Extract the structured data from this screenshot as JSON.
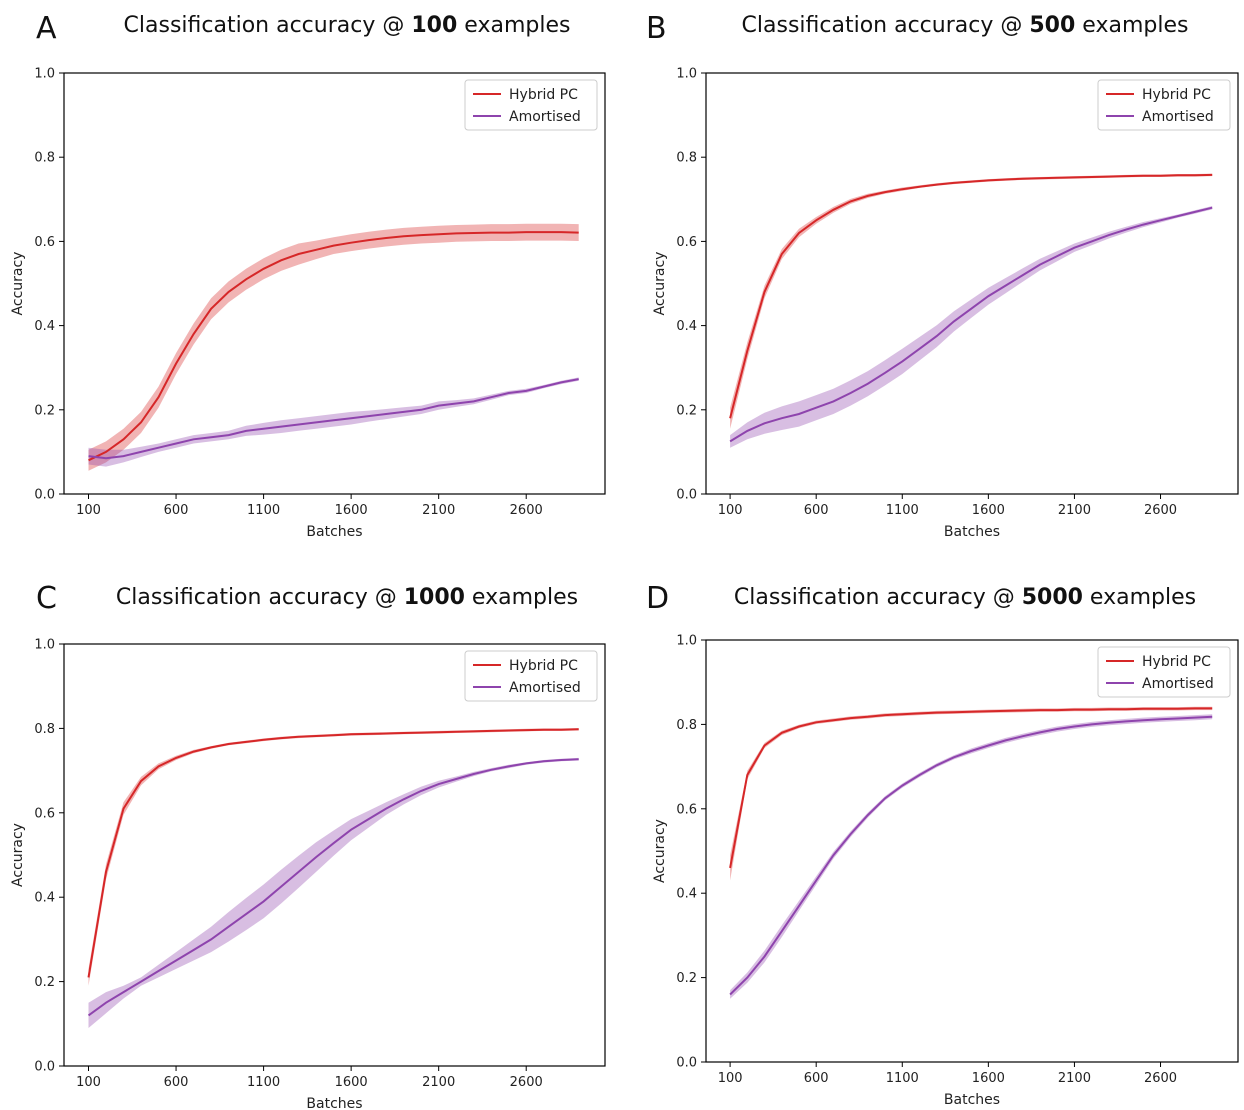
{
  "chart_data": [
    {
      "type": "line",
      "panel": "A",
      "title_prefix": "Classification accuracy @ ",
      "title_bold": "100",
      "title_suffix": " examples",
      "xlabel": "Batches",
      "ylabel": "Accuracy",
      "xticks": [
        100,
        600,
        1100,
        1600,
        2100,
        2600
      ],
      "yticks": [
        "0.0",
        "0.2",
        "0.4",
        "0.6",
        "0.8",
        "1.0"
      ],
      "xlim": [
        -40,
        3050
      ],
      "ylim": [
        0,
        1.0
      ],
      "legend_position": "top-right",
      "x": [
        100,
        200,
        300,
        400,
        500,
        600,
        700,
        800,
        900,
        1000,
        1100,
        1200,
        1300,
        1400,
        1500,
        1600,
        1700,
        1800,
        1900,
        2000,
        2100,
        2200,
        2300,
        2400,
        2500,
        2600,
        2700,
        2800,
        2900
      ],
      "series": [
        {
          "name": "Hybrid PC",
          "color": "#d62728",
          "values": [
            0.08,
            0.1,
            0.13,
            0.17,
            0.23,
            0.31,
            0.38,
            0.44,
            0.48,
            0.51,
            0.535,
            0.555,
            0.57,
            0.58,
            0.59,
            0.597,
            0.603,
            0.608,
            0.612,
            0.615,
            0.617,
            0.619,
            0.62,
            0.621,
            0.621,
            0.622,
            0.622,
            0.622,
            0.621
          ],
          "band": [
            0.025,
            0.025,
            0.025,
            0.025,
            0.025,
            0.025,
            0.025,
            0.025,
            0.025,
            0.025,
            0.025,
            0.025,
            0.025,
            0.022,
            0.02,
            0.02,
            0.02,
            0.02,
            0.02,
            0.02,
            0.02,
            0.02,
            0.02,
            0.02,
            0.02,
            0.02,
            0.02,
            0.02,
            0.02
          ]
        },
        {
          "name": "Amortised",
          "color": "#8e44ad",
          "values": [
            0.09,
            0.085,
            0.09,
            0.1,
            0.11,
            0.12,
            0.13,
            0.135,
            0.14,
            0.15,
            0.155,
            0.16,
            0.165,
            0.17,
            0.175,
            0.18,
            0.185,
            0.19,
            0.195,
            0.2,
            0.21,
            0.215,
            0.22,
            0.23,
            0.24,
            0.245,
            0.255,
            0.265,
            0.273
          ],
          "band": [
            0.02,
            0.02,
            0.015,
            0.012,
            0.01,
            0.01,
            0.01,
            0.01,
            0.01,
            0.012,
            0.014,
            0.015,
            0.015,
            0.015,
            0.015,
            0.015,
            0.013,
            0.012,
            0.011,
            0.01,
            0.01,
            0.008,
            0.007,
            0.006,
            0.005,
            0.005,
            0.004,
            0.004,
            0.004
          ]
        }
      ]
    },
    {
      "type": "line",
      "panel": "B",
      "title_prefix": "Classification accuracy @ ",
      "title_bold": "500",
      "title_suffix": " examples",
      "xlabel": "Batches",
      "ylabel": "Accuracy",
      "xticks": [
        100,
        600,
        1100,
        1600,
        2100,
        2600
      ],
      "yticks": [
        "0.0",
        "0.2",
        "0.4",
        "0.6",
        "0.8",
        "1.0"
      ],
      "xlim": [
        -40,
        3050
      ],
      "ylim": [
        0,
        1.0
      ],
      "legend_position": "top-right",
      "x": [
        100,
        200,
        300,
        400,
        500,
        600,
        700,
        800,
        900,
        1000,
        1100,
        1200,
        1300,
        1400,
        1500,
        1600,
        1700,
        1800,
        1900,
        2000,
        2100,
        2200,
        2300,
        2400,
        2500,
        2600,
        2700,
        2800,
        2900
      ],
      "series": [
        {
          "name": "Hybrid PC",
          "color": "#d62728",
          "values": [
            0.18,
            0.34,
            0.48,
            0.57,
            0.62,
            0.65,
            0.675,
            0.695,
            0.708,
            0.717,
            0.724,
            0.73,
            0.735,
            0.739,
            0.742,
            0.745,
            0.747,
            0.749,
            0.75,
            0.751,
            0.752,
            0.753,
            0.754,
            0.755,
            0.756,
            0.756,
            0.757,
            0.757,
            0.758
          ],
          "band": [
            0.025,
            0.02,
            0.015,
            0.012,
            0.01,
            0.008,
            0.007,
            0.006,
            0.005,
            0.004,
            0.004,
            0.003,
            0.003,
            0.003,
            0.003,
            0.003,
            0.003,
            0.003,
            0.003,
            0.003,
            0.003,
            0.003,
            0.003,
            0.003,
            0.003,
            0.003,
            0.003,
            0.003,
            0.003
          ]
        },
        {
          "name": "Amortised",
          "color": "#8e44ad",
          "values": [
            0.125,
            0.15,
            0.168,
            0.18,
            0.19,
            0.205,
            0.22,
            0.24,
            0.262,
            0.288,
            0.315,
            0.345,
            0.375,
            0.41,
            0.44,
            0.47,
            0.495,
            0.52,
            0.545,
            0.565,
            0.585,
            0.6,
            0.615,
            0.628,
            0.64,
            0.65,
            0.66,
            0.67,
            0.68
          ],
          "band": [
            0.015,
            0.02,
            0.025,
            0.028,
            0.03,
            0.03,
            0.03,
            0.03,
            0.03,
            0.03,
            0.03,
            0.028,
            0.026,
            0.024,
            0.022,
            0.02,
            0.018,
            0.016,
            0.014,
            0.012,
            0.01,
            0.009,
            0.008,
            0.007,
            0.006,
            0.005,
            0.004,
            0.004,
            0.004
          ]
        }
      ]
    },
    {
      "type": "line",
      "panel": "C",
      "title_prefix": "Classification accuracy @ ",
      "title_bold": "1000",
      "title_suffix": " examples",
      "xlabel": "Batches",
      "ylabel": "Accuracy",
      "xticks": [
        100,
        600,
        1100,
        1600,
        2100,
        2600
      ],
      "yticks": [
        "0.0",
        "0.2",
        "0.4",
        "0.6",
        "0.8",
        "1.0"
      ],
      "xlim": [
        -40,
        3050
      ],
      "ylim": [
        0,
        1.0
      ],
      "legend_position": "top-right",
      "x": [
        100,
        200,
        300,
        400,
        500,
        600,
        700,
        800,
        900,
        1000,
        1100,
        1200,
        1300,
        1400,
        1500,
        1600,
        1700,
        1800,
        1900,
        2000,
        2100,
        2200,
        2300,
        2400,
        2500,
        2600,
        2700,
        2800,
        2900
      ],
      "series": [
        {
          "name": "Hybrid PC",
          "color": "#d62728",
          "values": [
            0.21,
            0.46,
            0.61,
            0.675,
            0.71,
            0.73,
            0.745,
            0.755,
            0.763,
            0.768,
            0.773,
            0.777,
            0.78,
            0.782,
            0.784,
            0.786,
            0.787,
            0.788,
            0.789,
            0.79,
            0.791,
            0.792,
            0.793,
            0.794,
            0.795,
            0.796,
            0.797,
            0.797,
            0.798
          ],
          "band": [
            0.02,
            0.018,
            0.015,
            0.01,
            0.007,
            0.005,
            0.004,
            0.003,
            0.003,
            0.003,
            0.003,
            0.003,
            0.003,
            0.003,
            0.003,
            0.003,
            0.003,
            0.003,
            0.003,
            0.003,
            0.003,
            0.003,
            0.003,
            0.003,
            0.003,
            0.003,
            0.003,
            0.003,
            0.003
          ]
        },
        {
          "name": "Amortised",
          "color": "#8e44ad",
          "values": [
            0.12,
            0.15,
            0.175,
            0.2,
            0.225,
            0.25,
            0.275,
            0.3,
            0.33,
            0.36,
            0.39,
            0.425,
            0.46,
            0.495,
            0.528,
            0.56,
            0.585,
            0.61,
            0.632,
            0.652,
            0.668,
            0.68,
            0.692,
            0.702,
            0.71,
            0.717,
            0.722,
            0.725,
            0.727
          ],
          "band": [
            0.03,
            0.025,
            0.015,
            0.01,
            0.015,
            0.02,
            0.025,
            0.03,
            0.035,
            0.038,
            0.04,
            0.04,
            0.038,
            0.035,
            0.03,
            0.025,
            0.02,
            0.015,
            0.012,
            0.01,
            0.008,
            0.006,
            0.005,
            0.004,
            0.004,
            0.003,
            0.003,
            0.003,
            0.003
          ]
        }
      ]
    },
    {
      "type": "line",
      "panel": "D",
      "title_prefix": "Classification accuracy @ ",
      "title_bold": "5000",
      "title_suffix": " examples",
      "xlabel": "Batches",
      "ylabel": "Accuracy",
      "xticks": [
        100,
        600,
        1100,
        1600,
        2100,
        2600
      ],
      "yticks": [
        "0.0",
        "0.2",
        "0.4",
        "0.6",
        "0.8",
        "1.0"
      ],
      "xlim": [
        -40,
        3050
      ],
      "ylim": [
        0,
        1.0
      ],
      "legend_position": "top-right",
      "x": [
        100,
        200,
        300,
        400,
        500,
        600,
        700,
        800,
        900,
        1000,
        1100,
        1200,
        1300,
        1400,
        1500,
        1600,
        1700,
        1800,
        1900,
        2000,
        2100,
        2200,
        2300,
        2400,
        2500,
        2600,
        2700,
        2800,
        2900
      ],
      "series": [
        {
          "name": "Hybrid PC",
          "color": "#d62728",
          "values": [
            0.46,
            0.68,
            0.75,
            0.78,
            0.795,
            0.805,
            0.81,
            0.815,
            0.818,
            0.822,
            0.824,
            0.826,
            0.828,
            0.829,
            0.83,
            0.831,
            0.832,
            0.833,
            0.834,
            0.834,
            0.835,
            0.835,
            0.836,
            0.836,
            0.837,
            0.837,
            0.837,
            0.838,
            0.838
          ],
          "band": [
            0.03,
            0.01,
            0.006,
            0.005,
            0.004,
            0.004,
            0.004,
            0.004,
            0.004,
            0.004,
            0.004,
            0.004,
            0.004,
            0.004,
            0.004,
            0.004,
            0.004,
            0.004,
            0.004,
            0.004,
            0.004,
            0.004,
            0.004,
            0.004,
            0.004,
            0.004,
            0.004,
            0.004,
            0.004
          ]
        },
        {
          "name": "Amortised",
          "color": "#8e44ad",
          "values": [
            0.16,
            0.2,
            0.25,
            0.31,
            0.37,
            0.43,
            0.49,
            0.54,
            0.585,
            0.625,
            0.655,
            0.68,
            0.703,
            0.722,
            0.737,
            0.75,
            0.762,
            0.772,
            0.781,
            0.789,
            0.795,
            0.8,
            0.804,
            0.807,
            0.81,
            0.812,
            0.814,
            0.816,
            0.818
          ],
          "band": [
            0.01,
            0.012,
            0.014,
            0.014,
            0.012,
            0.01,
            0.008,
            0.007,
            0.006,
            0.005,
            0.005,
            0.005,
            0.005,
            0.005,
            0.006,
            0.006,
            0.006,
            0.006,
            0.006,
            0.006,
            0.006,
            0.006,
            0.006,
            0.006,
            0.006,
            0.006,
            0.006,
            0.006,
            0.006
          ]
        }
      ]
    }
  ]
}
